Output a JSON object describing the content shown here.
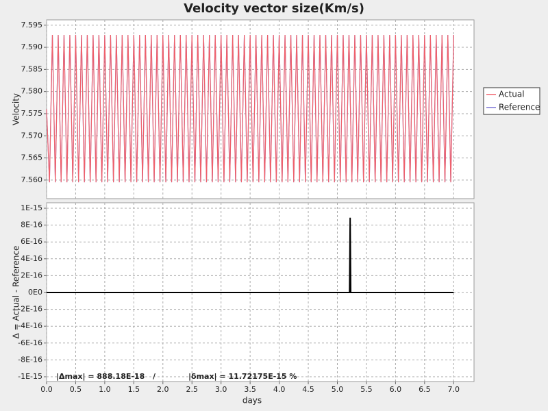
{
  "chart_data": [
    {
      "type": "line",
      "title": "Velocity vector size(Km/s)",
      "ylabel": "Velocity",
      "legend": "right",
      "grid": true,
      "xlim": [
        0,
        7.35
      ],
      "ylim": [
        7.5558,
        7.5962
      ],
      "yticks": [
        {
          "value": 7.56,
          "label": "7.560"
        },
        7.565,
        {
          "value": 7.57,
          "label": "7.570"
        },
        7.575,
        {
          "value": 7.58,
          "label": "7.580"
        },
        7.585,
        {
          "value": 7.59,
          "label": "7.590"
        },
        7.595
      ],
      "x": [
        0,
        0.05,
        0.1,
        0.15,
        0.2,
        0.25,
        0.3,
        0.35,
        0.4,
        0.45,
        0.5,
        0.55,
        0.6,
        0.65,
        0.7,
        0.75,
        0.8,
        0.85,
        0.9,
        0.95,
        1,
        1.05,
        1.1,
        1.15,
        1.2,
        1.25,
        1.3,
        1.35,
        1.4,
        1.45,
        1.5,
        1.55,
        1.6,
        1.65,
        1.7,
        1.75,
        1.8,
        1.85,
        1.9,
        1.95,
        2,
        2.05,
        2.1,
        2.15,
        2.2,
        2.25,
        2.3,
        2.35,
        2.4,
        2.45,
        2.5,
        2.55,
        2.6,
        2.65,
        2.7,
        2.75,
        2.8,
        2.85,
        2.9,
        2.95,
        3,
        3.05,
        3.1,
        3.15,
        3.2,
        3.25,
        3.3,
        3.35,
        3.4,
        3.45,
        3.5,
        3.55,
        3.6,
        3.65,
        3.7,
        3.75,
        3.8,
        3.85,
        3.9,
        3.95,
        4,
        4.05,
        4.1,
        4.15,
        4.2,
        4.25,
        4.3,
        4.35,
        4.4,
        4.45,
        4.5,
        4.55,
        4.6,
        4.65,
        4.7,
        4.75,
        4.8,
        4.85,
        4.9,
        4.95,
        5,
        5.05,
        5.1,
        5.15,
        5.2,
        5.25,
        5.3,
        5.35,
        5.4,
        5.45,
        5.5,
        5.55,
        5.6,
        5.65,
        5.7,
        5.75,
        5.8,
        5.85,
        5.9,
        5.95,
        6,
        6.05,
        6.1,
        6.15,
        6.2,
        6.25,
        6.3,
        6.35,
        6.4,
        6.45,
        6.5,
        6.55,
        6.6,
        6.65,
        6.7,
        6.75,
        6.8,
        6.85,
        6.9,
        6.95,
        7
      ],
      "series": [
        {
          "name": "Reference",
          "color": "#7a72d6",
          "values": [
            7.576,
            7.5595,
            7.5928,
            7.5595,
            7.5928,
            7.5595,
            7.5928,
            7.5595,
            7.5928,
            7.5595,
            7.5928,
            7.5595,
            7.5928,
            7.5595,
            7.5928,
            7.5595,
            7.5928,
            7.5595,
            7.5928,
            7.5595,
            7.5928,
            7.5595,
            7.5928,
            7.5595,
            7.5928,
            7.5595,
            7.5928,
            7.5595,
            7.5928,
            7.5595,
            7.5928,
            7.5595,
            7.5928,
            7.5595,
            7.5928,
            7.5595,
            7.5928,
            7.5595,
            7.5928,
            7.5595,
            7.5928,
            7.5595,
            7.5928,
            7.5595,
            7.5928,
            7.5595,
            7.5928,
            7.5595,
            7.5928,
            7.5595,
            7.5928,
            7.5595,
            7.5928,
            7.5595,
            7.5928,
            7.5595,
            7.5928,
            7.5595,
            7.5928,
            7.5595,
            7.5928,
            7.5595,
            7.5928,
            7.5595,
            7.5928,
            7.5595,
            7.5928,
            7.5595,
            7.5928,
            7.5595,
            7.5928,
            7.5595,
            7.5928,
            7.5595,
            7.5928,
            7.5595,
            7.5928,
            7.5595,
            7.5928,
            7.5595,
            7.5928,
            7.5595,
            7.5928,
            7.5595,
            7.5928,
            7.5595,
            7.5928,
            7.5595,
            7.5928,
            7.5595,
            7.5928,
            7.5595,
            7.5928,
            7.5595,
            7.5928,
            7.5595,
            7.5928,
            7.5595,
            7.5928,
            7.5595,
            7.5928,
            7.5595,
            7.5928,
            7.5595,
            7.5928,
            7.5595,
            7.5928,
            7.5595,
            7.5928,
            7.5595,
            7.5928,
            7.5595,
            7.5928,
            7.5595,
            7.5928,
            7.5595,
            7.5928,
            7.5595,
            7.5928,
            7.5595,
            7.5928,
            7.5595,
            7.5928,
            7.5595,
            7.5928,
            7.5595,
            7.5928,
            7.5595,
            7.5928,
            7.5595,
            7.5928,
            7.5595,
            7.5928,
            7.5595,
            7.5928,
            7.5595,
            7.5928,
            7.5595,
            7.5928,
            7.5595,
            7.5928
          ]
        },
        {
          "name": "Actual",
          "color": "#f0606a",
          "values": [
            7.576,
            7.5595,
            7.5928,
            7.5595,
            7.5928,
            7.5595,
            7.5928,
            7.5595,
            7.5928,
            7.5595,
            7.5928,
            7.5595,
            7.5928,
            7.5595,
            7.5928,
            7.5595,
            7.5928,
            7.5595,
            7.5928,
            7.5595,
            7.5928,
            7.5595,
            7.5928,
            7.5595,
            7.5928,
            7.5595,
            7.5928,
            7.5595,
            7.5928,
            7.5595,
            7.5928,
            7.5595,
            7.5928,
            7.5595,
            7.5928,
            7.5595,
            7.5928,
            7.5595,
            7.5928,
            7.5595,
            7.5928,
            7.5595,
            7.5928,
            7.5595,
            7.5928,
            7.5595,
            7.5928,
            7.5595,
            7.5928,
            7.5595,
            7.5928,
            7.5595,
            7.5928,
            7.5595,
            7.5928,
            7.5595,
            7.5928,
            7.5595,
            7.5928,
            7.5595,
            7.5928,
            7.5595,
            7.5928,
            7.5595,
            7.5928,
            7.5595,
            7.5928,
            7.5595,
            7.5928,
            7.5595,
            7.5928,
            7.5595,
            7.5928,
            7.5595,
            7.5928,
            7.5595,
            7.5928,
            7.5595,
            7.5928,
            7.5595,
            7.5928,
            7.5595,
            7.5928,
            7.5595,
            7.5928,
            7.5595,
            7.5928,
            7.5595,
            7.5928,
            7.5595,
            7.5928,
            7.5595,
            7.5928,
            7.5595,
            7.5928,
            7.5595,
            7.5928,
            7.5595,
            7.5928,
            7.5595,
            7.5928,
            7.5595,
            7.5928,
            7.5595,
            7.5928,
            7.5595,
            7.5928,
            7.5595,
            7.5928,
            7.5595,
            7.5928,
            7.5595,
            7.5928,
            7.5595,
            7.5928,
            7.5595,
            7.5928,
            7.5595,
            7.5928,
            7.5595,
            7.5928,
            7.5595,
            7.5928,
            7.5595,
            7.5928,
            7.5595,
            7.5928,
            7.5595,
            7.5928,
            7.5595,
            7.5928,
            7.5595,
            7.5928,
            7.5595,
            7.5928,
            7.5595,
            7.5928,
            7.5595,
            7.5928,
            7.5595,
            7.5928
          ]
        }
      ]
    },
    {
      "type": "line",
      "ylabel": "Δ = Actual - Reference",
      "xlabel": "days",
      "grid": true,
      "xlim": [
        0,
        7.35
      ],
      "ylim": [
        -1.057e-15,
        1.065e-15
      ],
      "xticks": [
        {
          "value": 0,
          "label": "0.0"
        },
        0.5,
        {
          "value": 1,
          "label": "1.0"
        },
        1.5,
        {
          "value": 2,
          "label": "2.0"
        },
        2.5,
        {
          "value": 3,
          "label": "3.0"
        },
        3.5,
        {
          "value": 4,
          "label": "4.0"
        },
        4.5,
        {
          "value": 5,
          "label": "5.0"
        },
        5.5,
        {
          "value": 6,
          "label": "6.0"
        },
        6.5,
        {
          "value": 7,
          "label": "7.0"
        }
      ],
      "yticks": [
        {
          "value": -1e-15,
          "label": "-1E-15"
        },
        {
          "value": -8e-16,
          "label": "-8E-16"
        },
        {
          "value": -6e-16,
          "label": "-6E-16"
        },
        {
          "value": -4e-16,
          "label": "-4E-16"
        },
        {
          "value": -2e-16,
          "label": "-2E-16"
        },
        {
          "value": 0,
          "label": "0E0"
        },
        {
          "value": 2e-16,
          "label": "2E-16"
        },
        {
          "value": 4e-16,
          "label": "4E-16"
        },
        {
          "value": 6e-16,
          "label": "6E-16"
        },
        {
          "value": 8e-16,
          "label": "8E-16"
        },
        {
          "value": 1e-15,
          "label": "1E-15"
        }
      ],
      "x": [
        0,
        5.21,
        5.22,
        5.23,
        7
      ],
      "series": [
        {
          "color": "#000000",
          "values": [
            0,
            0,
            8.8818e-16,
            0,
            0
          ]
        }
      ],
      "annotations": [
        "|Δmax| = 888.18E-18",
        "/",
        "|δmax| = 11.72175E-15 %"
      ]
    }
  ]
}
